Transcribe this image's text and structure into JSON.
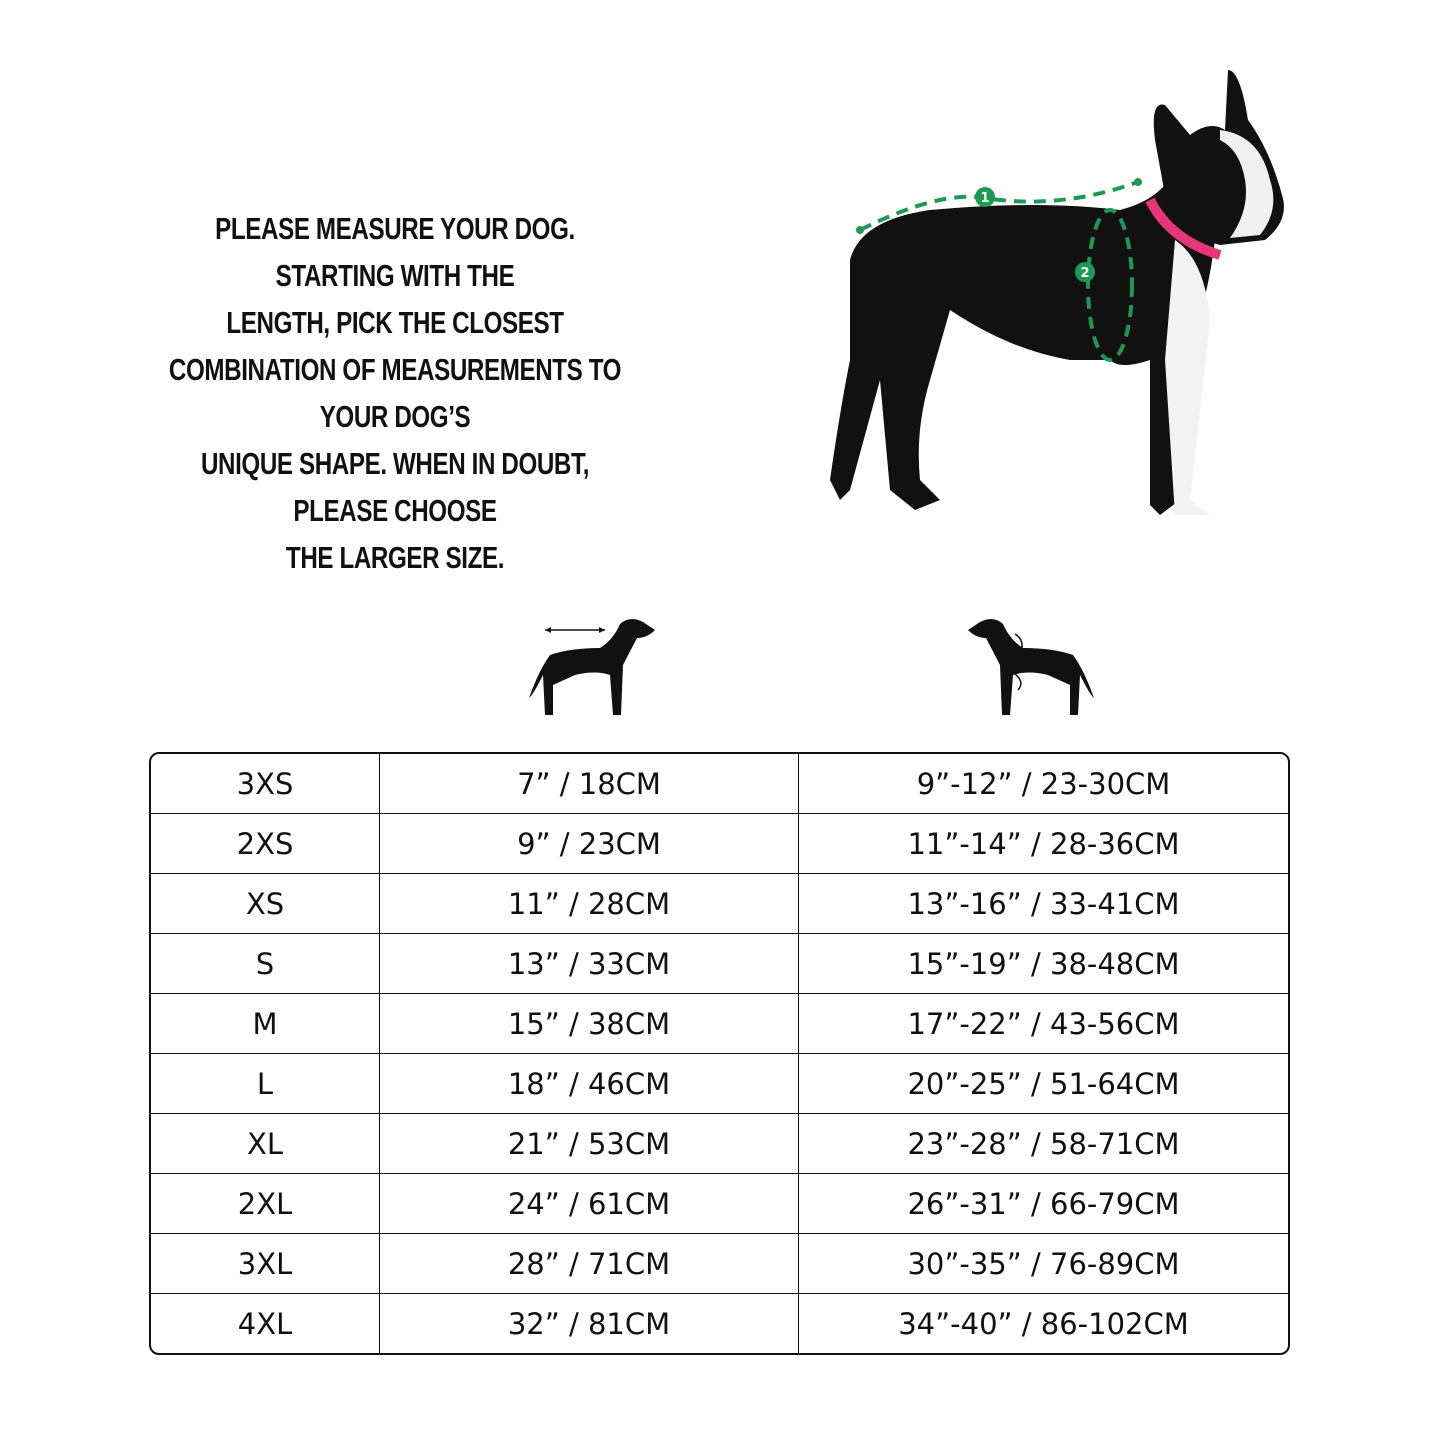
{
  "instructions": {
    "lines": [
      "PLEASE MEASURE YOUR DOG. STARTING WITH THE",
      "LENGTH, PICK THE CLOSEST",
      "COMBINATION OF MEASUREMENTS TO YOUR DOG’S",
      "UNIQUE SHAPE. WHEN IN DOUBT, PLEASE CHOOSE",
      "THE LARGER SIZE."
    ]
  },
  "photo": {
    "markers": [
      "1",
      "2"
    ],
    "measure_color": "#1a9a52",
    "collar_color": "#e8347a"
  },
  "icons": [
    "dog-length-silhouette-icon",
    "dog-girth-silhouette-icon"
  ],
  "table": {
    "rows": [
      [
        "3XS",
        "7” / 18CM",
        "9”-12” / 23-30CM"
      ],
      [
        "2XS",
        "9” / 23CM",
        "11”-14” / 28-36CM"
      ],
      [
        "XS",
        "11” / 28CM",
        "13”-16” / 33-41CM"
      ],
      [
        "S",
        "13” / 33CM",
        "15”-19” / 38-48CM"
      ],
      [
        "M",
        "15” / 38CM",
        "17”-22” / 43-56CM"
      ],
      [
        "L",
        "18” / 46CM",
        "20”-25” / 51-64CM"
      ],
      [
        "XL",
        "21” / 53CM",
        "23”-28” / 58-71CM"
      ],
      [
        "2XL",
        "24” / 61CM",
        "26”-31” / 66-79CM"
      ],
      [
        "3XL",
        "28” / 71CM",
        "30”-35” / 76-89CM"
      ],
      [
        "4XL",
        "32” / 81CM",
        "34”-40” / 86-102CM"
      ]
    ]
  }
}
